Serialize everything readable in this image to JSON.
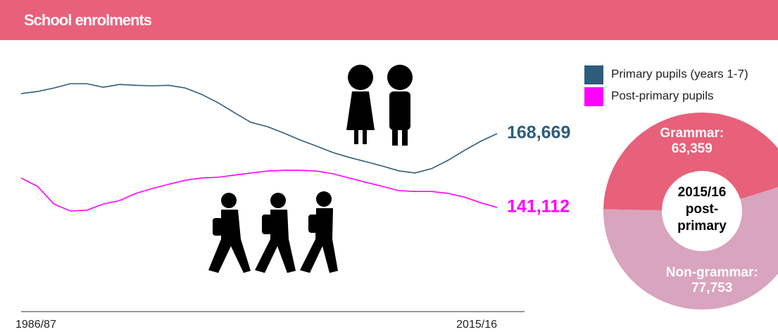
{
  "header": {
    "title": "School enrolments"
  },
  "chart_data": [
    {
      "type": "line",
      "categories": [
        "1986/87",
        null,
        null,
        null,
        null,
        null,
        null,
        null,
        null,
        null,
        null,
        null,
        null,
        null,
        null,
        null,
        null,
        null,
        null,
        null,
        null,
        null,
        null,
        null,
        null,
        null,
        null,
        null,
        null,
        "2015/16"
      ],
      "series": [
        {
          "name": "Primary pupils (years 1-7)",
          "color": "#2d5d7b",
          "values": [
            183600,
            184400,
            185700,
            187300,
            187300,
            186000,
            187000,
            186700,
            186500,
            186700,
            185700,
            183300,
            180200,
            176500,
            172900,
            171300,
            168900,
            166300,
            164000,
            161600,
            159800,
            158200,
            156600,
            154800,
            154000,
            155600,
            158700,
            162400,
            165800,
            168669
          ],
          "value_labels": [
            null,
            null,
            null,
            null,
            null,
            null,
            null,
            null,
            null,
            null,
            null,
            null,
            null,
            null,
            null,
            null,
            null,
            null,
            null,
            null,
            null,
            null,
            null,
            null,
            null,
            null,
            null,
            null,
            null,
            "168,669"
          ]
        },
        {
          "name": "Post-primary pupils",
          "color": "#ff00ff",
          "values": [
            152100,
            149000,
            142400,
            139800,
            140100,
            142400,
            143700,
            146400,
            148200,
            149800,
            151300,
            152100,
            152400,
            153200,
            154000,
            154700,
            155000,
            155000,
            154700,
            153700,
            152100,
            150500,
            149000,
            147400,
            147100,
            147100,
            146400,
            145000,
            142900,
            141112
          ],
          "value_labels": [
            null,
            null,
            null,
            null,
            null,
            null,
            null,
            null,
            null,
            null,
            null,
            null,
            null,
            null,
            null,
            null,
            null,
            null,
            null,
            null,
            null,
            null,
            null,
            null,
            null,
            null,
            null,
            null,
            null,
            "141,112"
          ]
        }
      ],
      "legend": "top-right"
    },
    {
      "type": "donut",
      "categories": [
        "Grammar:",
        "Non-grammar:"
      ],
      "values": [
        63359,
        77753
      ],
      "value_labels": [
        "63,359",
        "77,753"
      ],
      "colors": [
        "#e8607a",
        "#d8a4be"
      ],
      "center_label": [
        "2015/16",
        "post-",
        "primary"
      ]
    }
  ]
}
